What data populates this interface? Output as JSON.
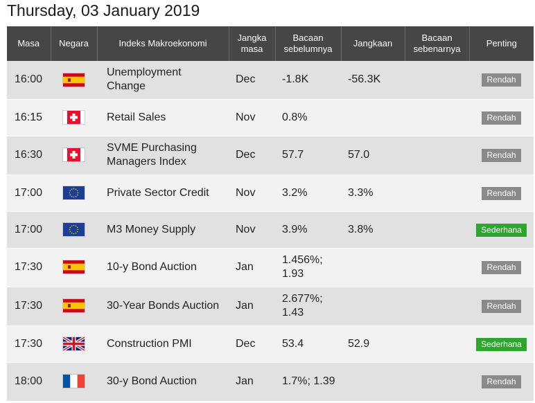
{
  "page": {
    "title": "Thursday, 03 January 2019"
  },
  "table": {
    "headers": {
      "time": "Masa",
      "country": "Negara",
      "event": "Indeks Makroekonomi",
      "period": "Jangka masa",
      "previous": "Bacaan sebelumnya",
      "consensus": "Jangkaan",
      "actual": "Bacaan sebenarnya",
      "importance": "Penting"
    },
    "rows": [
      {
        "time": "16:00",
        "country": "spain-flag",
        "event": "Unemployment Change",
        "period": "Dec",
        "previous": "-1.8K",
        "consensus": "-56.3K",
        "actual": "",
        "importance": "Rendah",
        "level": "low"
      },
      {
        "time": "16:15",
        "country": "switzerland-flag",
        "event": "Retail Sales",
        "period": "Nov",
        "previous": "0.8%",
        "consensus": "",
        "actual": "",
        "importance": "Rendah",
        "level": "low"
      },
      {
        "time": "16:30",
        "country": "switzerland-flag",
        "event": "SVME Purchasing Managers Index",
        "period": "Dec",
        "previous": "57.7",
        "consensus": "57.0",
        "actual": "",
        "importance": "Rendah",
        "level": "low"
      },
      {
        "time": "17:00",
        "country": "eu-flag",
        "event": "Private Sector Credit",
        "period": "Nov",
        "previous": "3.2%",
        "consensus": "3.3%",
        "actual": "",
        "importance": "Rendah",
        "level": "low"
      },
      {
        "time": "17:00",
        "country": "eu-flag",
        "event": "M3 Money Supply",
        "period": "Nov",
        "previous": "3.9%",
        "consensus": "3.8%",
        "actual": "",
        "importance": "Sederhana",
        "level": "mid"
      },
      {
        "time": "17:30",
        "country": "spain-flag",
        "event": "10-y Bond Auction",
        "period": "Jan",
        "previous": "1.456%; 1.93",
        "consensus": "",
        "actual": "",
        "importance": "Rendah",
        "level": "low"
      },
      {
        "time": "17:30",
        "country": "spain-flag",
        "event": "30-Year Bonds Auction",
        "period": "Jan",
        "previous": "2.677%; 1.43",
        "consensus": "",
        "actual": "",
        "importance": "Rendah",
        "level": "low"
      },
      {
        "time": "17:30",
        "country": "uk-flag",
        "event": "Construction PMI",
        "period": "Dec",
        "previous": "53.4",
        "consensus": "52.9",
        "actual": "",
        "importance": "Sederhana",
        "level": "mid"
      },
      {
        "time": "18:00",
        "country": "france-flag",
        "event": "30-y Bond Auction",
        "period": "Jan",
        "previous": "1.7%; 1.39",
        "consensus": "",
        "actual": "",
        "importance": "Rendah",
        "level": "low"
      }
    ]
  },
  "colors": {
    "header_bg": "#464646",
    "row_odd": "#e1e1e1",
    "row_even": "#f2f2f2",
    "badge_low": "#8a8a8a",
    "badge_mid": "#2ea52e"
  }
}
